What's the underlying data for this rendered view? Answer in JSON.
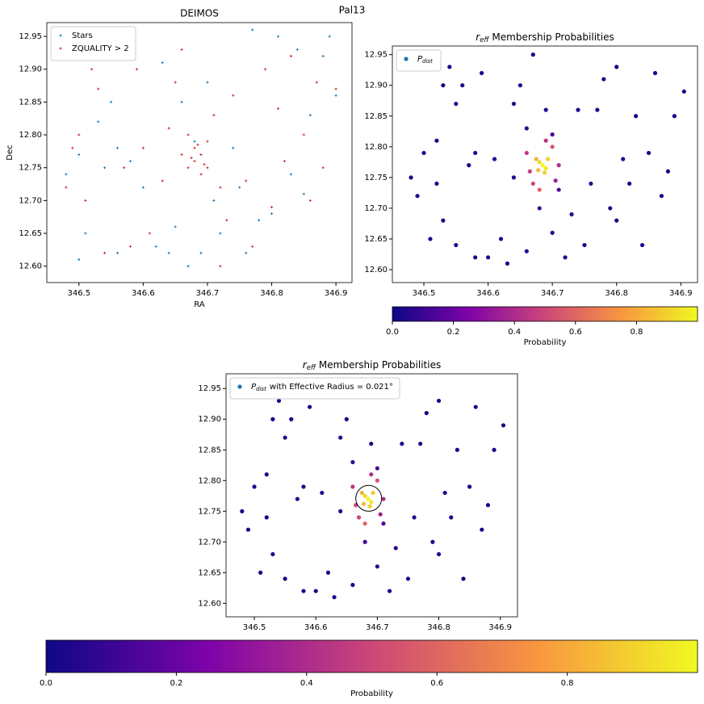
{
  "title": "Pal13",
  "chart_data": [
    {
      "type": "scatter",
      "title": "DEIMOS",
      "xlabel": "RA",
      "ylabel": "Dec",
      "xlim": [
        346.45,
        346.925
      ],
      "ylim": [
        12.575,
        12.971
      ],
      "xticks": [
        346.5,
        346.6,
        346.7,
        346.8,
        346.9
      ],
      "yticks": [
        {
          "value": 12.6,
          "label": "12.60"
        },
        12.65,
        {
          "value": 12.7,
          "label": "12.70"
        },
        12.75,
        {
          "value": 12.8,
          "label": "12.80"
        },
        12.85,
        {
          "value": 12.9,
          "label": "12.90"
        },
        12.95
      ],
      "legend": "upper left",
      "series": [
        {
          "name": "Stars",
          "color": "#1f77b4",
          "x": [
            346.48,
            346.5,
            346.51,
            346.53,
            346.54,
            346.55,
            346.56,
            346.58,
            346.6,
            346.62,
            346.63,
            346.65,
            346.66,
            346.67,
            346.68,
            346.7,
            346.71,
            346.72,
            346.74,
            346.75,
            346.77,
            346.78,
            346.8,
            346.81,
            346.83,
            346.84,
            346.85,
            346.86,
            346.88,
            346.89,
            346.9,
            346.5,
            346.56,
            346.64,
            346.69,
            346.76
          ],
          "y": [
            12.74,
            12.61,
            12.65,
            12.82,
            12.75,
            12.85,
            12.78,
            12.76,
            12.72,
            12.63,
            12.91,
            12.66,
            12.85,
            12.6,
            12.79,
            12.88,
            12.7,
            12.65,
            12.78,
            12.72,
            12.96,
            12.67,
            12.68,
            12.95,
            12.74,
            12.93,
            12.71,
            12.83,
            12.92,
            12.95,
            12.86,
            12.77,
            12.62,
            12.62,
            12.62,
            12.62
          ]
        },
        {
          "name": "ZQUALITY > 2",
          "color": "#d62728",
          "x": [
            346.48,
            346.49,
            346.5,
            346.51,
            346.52,
            346.53,
            346.54,
            346.55,
            346.57,
            346.58,
            346.59,
            346.6,
            346.61,
            346.63,
            346.64,
            346.65,
            346.66,
            346.67,
            346.68,
            346.68,
            346.69,
            346.69,
            346.7,
            346.7,
            346.67,
            346.675,
            346.685,
            346.695,
            346.71,
            346.72,
            346.73,
            346.74,
            346.76,
            346.77,
            346.79,
            346.8,
            346.81,
            346.82,
            346.83,
            346.85,
            346.86,
            346.87,
            346.88,
            346.9,
            346.66,
            346.72
          ],
          "y": [
            12.72,
            12.78,
            12.8,
            12.7,
            12.9,
            12.87,
            12.62,
            12.92,
            12.75,
            12.63,
            12.9,
            12.78,
            12.65,
            12.73,
            12.81,
            12.88,
            12.77,
            12.75,
            12.78,
            12.76,
            12.77,
            12.74,
            12.79,
            12.75,
            12.8,
            12.765,
            12.785,
            12.755,
            12.83,
            12.72,
            12.67,
            12.86,
            12.73,
            12.63,
            12.9,
            12.69,
            12.84,
            12.76,
            12.92,
            12.8,
            12.7,
            12.88,
            12.75,
            12.87,
            12.93,
            12.6
          ]
        }
      ]
    },
    {
      "type": "scatter",
      "title": {
        "symbol": "r",
        "subscript": "eff",
        "text": "Membership Probabilities"
      },
      "xlim": [
        346.451,
        346.926
      ],
      "ylim": [
        12.579,
        12.964
      ],
      "xticks": [
        346.5,
        346.6,
        346.7,
        346.8,
        346.9
      ],
      "yticks": [
        {
          "value": 12.6,
          "label": "12.60"
        },
        12.65,
        {
          "value": 12.7,
          "label": "12.70"
        },
        12.75,
        {
          "value": 12.8,
          "label": "12.80"
        },
        12.85,
        {
          "value": 12.9,
          "label": "12.90"
        },
        12.95
      ],
      "legend": "upper left",
      "colormap": "plasma",
      "colorbar": {
        "label": "Probability",
        "lim": [
          0,
          1
        ],
        "ticks": [
          {
            "value": 0,
            "label": "0.0"
          },
          0.2,
          0.4,
          0.6,
          0.8
        ]
      },
      "series": [
        {
          "name": {
            "symbol": "P",
            "subscript": "dist"
          },
          "color": "#1f77b4",
          "x": [
            346.48,
            346.49,
            346.5,
            346.51,
            346.52,
            346.52,
            346.53,
            346.53,
            346.54,
            346.55,
            346.55,
            346.56,
            346.57,
            346.58,
            346.58,
            346.59,
            346.6,
            346.61,
            346.62,
            346.63,
            346.64,
            346.64,
            346.65,
            346.66,
            346.66,
            346.67,
            346.68,
            346.69,
            346.7,
            346.7,
            346.71,
            346.72,
            346.73,
            346.74,
            346.75,
            346.76,
            346.77,
            346.78,
            346.79,
            346.8,
            346.8,
            346.81,
            346.82,
            346.83,
            346.84,
            346.85,
            346.86,
            346.87,
            346.88,
            346.89,
            346.905,
            346.66,
            346.67,
            346.71,
            346.7,
            346.68,
            346.665,
            346.69,
            346.705,
            346.685,
            346.68,
            346.69,
            346.678,
            346.693,
            346.688,
            346.675
          ],
          "y": [
            12.75,
            12.72,
            12.79,
            12.65,
            12.81,
            12.74,
            12.68,
            12.9,
            12.93,
            12.64,
            12.87,
            12.9,
            12.77,
            12.62,
            12.79,
            12.92,
            12.62,
            12.78,
            12.65,
            12.61,
            12.87,
            12.75,
            12.9,
            12.83,
            12.63,
            12.95,
            12.7,
            12.86,
            12.66,
            12.82,
            12.73,
            12.62,
            12.69,
            12.86,
            12.64,
            12.74,
            12.86,
            12.91,
            12.7,
            12.93,
            12.68,
            12.78,
            12.74,
            12.85,
            12.64,
            12.79,
            12.92,
            12.72,
            12.76,
            12.85,
            12.89,
            12.79,
            12.74,
            12.77,
            12.8,
            12.73,
            12.76,
            12.81,
            12.745,
            12.77,
            12.775,
            12.765,
            12.762,
            12.78,
            12.758,
            12.78
          ],
          "values": [
            0.02,
            0.02,
            0.03,
            0.02,
            0.03,
            0.03,
            0.02,
            0.02,
            0.02,
            0.02,
            0.03,
            0.02,
            0.04,
            0.02,
            0.04,
            0.02,
            0.02,
            0.05,
            0.03,
            0.02,
            0.04,
            0.06,
            0.03,
            0.08,
            0.03,
            0.02,
            0.1,
            0.05,
            0.06,
            0.12,
            0.15,
            0.03,
            0.08,
            0.04,
            0.03,
            0.06,
            0.04,
            0.02,
            0.04,
            0.02,
            0.03,
            0.04,
            0.04,
            0.02,
            0.02,
            0.03,
            0.02,
            0.02,
            0.02,
            0.02,
            0.02,
            0.45,
            0.5,
            0.4,
            0.55,
            0.6,
            0.48,
            0.42,
            0.35,
            0.99,
            0.92,
            0.95,
            0.85,
            0.88,
            0.9,
            0.82
          ]
        }
      ]
    },
    {
      "type": "scatter",
      "title": {
        "symbol": "r",
        "subscript": "eff",
        "text": "Membership Probabilities"
      },
      "xlim": [
        346.454,
        346.928
      ],
      "ylim": [
        12.578,
        12.974
      ],
      "xticks": [
        346.5,
        346.6,
        346.7,
        346.8,
        346.9
      ],
      "yticks": [
        {
          "value": 12.6,
          "label": "12.60"
        },
        12.65,
        {
          "value": 12.7,
          "label": "12.70"
        },
        12.75,
        {
          "value": 12.8,
          "label": "12.80"
        },
        12.85,
        {
          "value": 12.9,
          "label": "12.90"
        },
        12.95
      ],
      "legend": "upper left",
      "colormap": "plasma",
      "circle": {
        "x": 346.686,
        "y": 12.771,
        "radius": 0.021
      },
      "colorbar": {
        "label": "Probability",
        "lim": [
          0,
          1
        ],
        "ticks": [
          {
            "value": 0,
            "label": "0.0"
          },
          0.2,
          0.4,
          0.6,
          0.8
        ]
      },
      "series": [
        {
          "name": {
            "symbol": "P",
            "subscript": "dist",
            "text": "with Effective Radius = 0.021°"
          },
          "color": "#1f77b4",
          "x": [
            346.48,
            346.49,
            346.5,
            346.51,
            346.52,
            346.52,
            346.53,
            346.53,
            346.54,
            346.55,
            346.55,
            346.56,
            346.57,
            346.58,
            346.58,
            346.59,
            346.6,
            346.61,
            346.62,
            346.63,
            346.64,
            346.64,
            346.65,
            346.66,
            346.66,
            346.67,
            346.68,
            346.69,
            346.7,
            346.7,
            346.71,
            346.72,
            346.73,
            346.74,
            346.75,
            346.76,
            346.77,
            346.78,
            346.79,
            346.8,
            346.8,
            346.81,
            346.82,
            346.83,
            346.84,
            346.85,
            346.86,
            346.87,
            346.88,
            346.89,
            346.905,
            346.66,
            346.67,
            346.71,
            346.7,
            346.68,
            346.665,
            346.69,
            346.705,
            346.685,
            346.68,
            346.69,
            346.678,
            346.693,
            346.688,
            346.675
          ],
          "y": [
            12.75,
            12.72,
            12.79,
            12.65,
            12.81,
            12.74,
            12.68,
            12.9,
            12.93,
            12.64,
            12.87,
            12.9,
            12.77,
            12.62,
            12.79,
            12.92,
            12.62,
            12.78,
            12.65,
            12.61,
            12.87,
            12.75,
            12.9,
            12.83,
            12.63,
            12.95,
            12.7,
            12.86,
            12.66,
            12.82,
            12.73,
            12.62,
            12.69,
            12.86,
            12.64,
            12.74,
            12.86,
            12.91,
            12.7,
            12.93,
            12.68,
            12.78,
            12.74,
            12.85,
            12.64,
            12.79,
            12.92,
            12.72,
            12.76,
            12.85,
            12.89,
            12.79,
            12.74,
            12.77,
            12.8,
            12.73,
            12.76,
            12.81,
            12.745,
            12.77,
            12.775,
            12.765,
            12.762,
            12.78,
            12.758,
            12.78
          ],
          "values": [
            0.02,
            0.02,
            0.03,
            0.02,
            0.03,
            0.03,
            0.02,
            0.02,
            0.02,
            0.02,
            0.03,
            0.02,
            0.04,
            0.02,
            0.04,
            0.02,
            0.02,
            0.05,
            0.03,
            0.02,
            0.04,
            0.06,
            0.03,
            0.08,
            0.03,
            0.02,
            0.1,
            0.05,
            0.06,
            0.12,
            0.15,
            0.03,
            0.08,
            0.04,
            0.03,
            0.06,
            0.04,
            0.02,
            0.04,
            0.02,
            0.03,
            0.04,
            0.04,
            0.02,
            0.02,
            0.03,
            0.02,
            0.02,
            0.02,
            0.02,
            0.02,
            0.45,
            0.5,
            0.4,
            0.55,
            0.6,
            0.48,
            0.42,
            0.35,
            0.99,
            0.92,
            0.95,
            0.85,
            0.88,
            0.9,
            0.82
          ]
        }
      ]
    }
  ]
}
